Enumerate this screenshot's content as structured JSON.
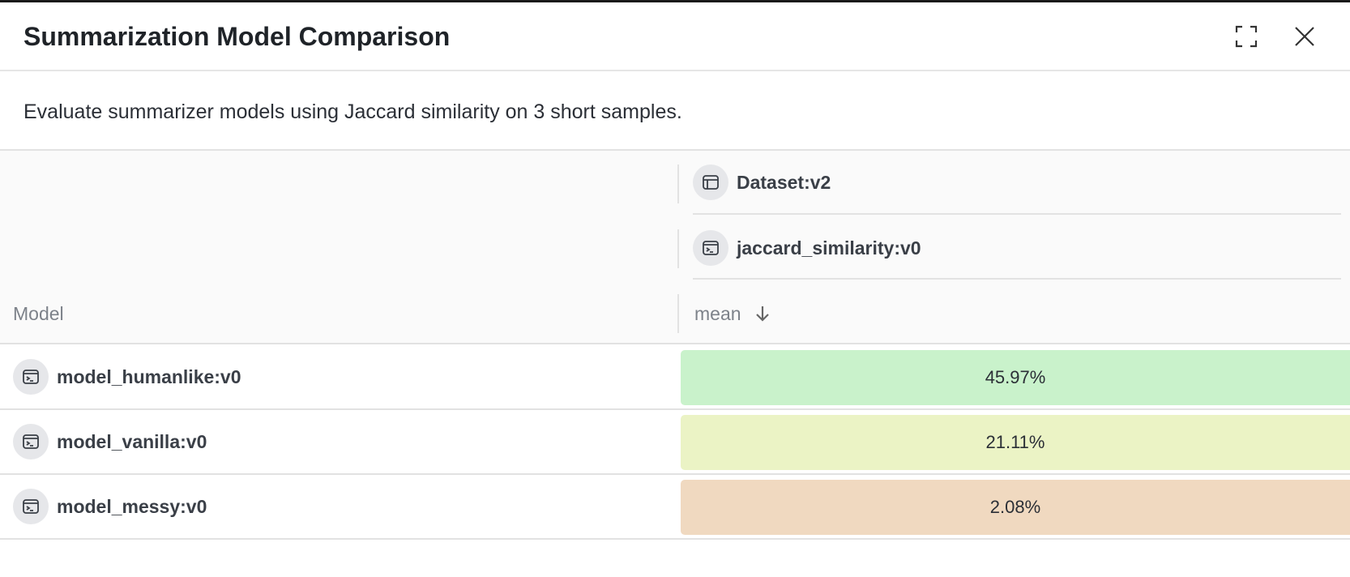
{
  "panel": {
    "title": "Summarization Model Comparison",
    "description": "Evaluate summarizer models using Jaccard similarity on 3 short samples.",
    "icons": {
      "fullscreen": "fullscreen-icon",
      "close": "close-icon"
    }
  },
  "table": {
    "dataset_label": "Dataset:v2",
    "scorer_label": "jaccard_similarity:v0",
    "model_header": "Model",
    "metric_header": "mean",
    "sort_direction": "descending",
    "rows": [
      {
        "model": "model_humanlike:v0",
        "mean": "45.97%",
        "color": "#c9f2cb"
      },
      {
        "model": "model_vanilla:v0",
        "mean": "21.11%",
        "color": "#ebf3c5"
      },
      {
        "model": "model_messy:v0",
        "mean": "2.08%",
        "color": "#f0d9c0"
      }
    ]
  }
}
